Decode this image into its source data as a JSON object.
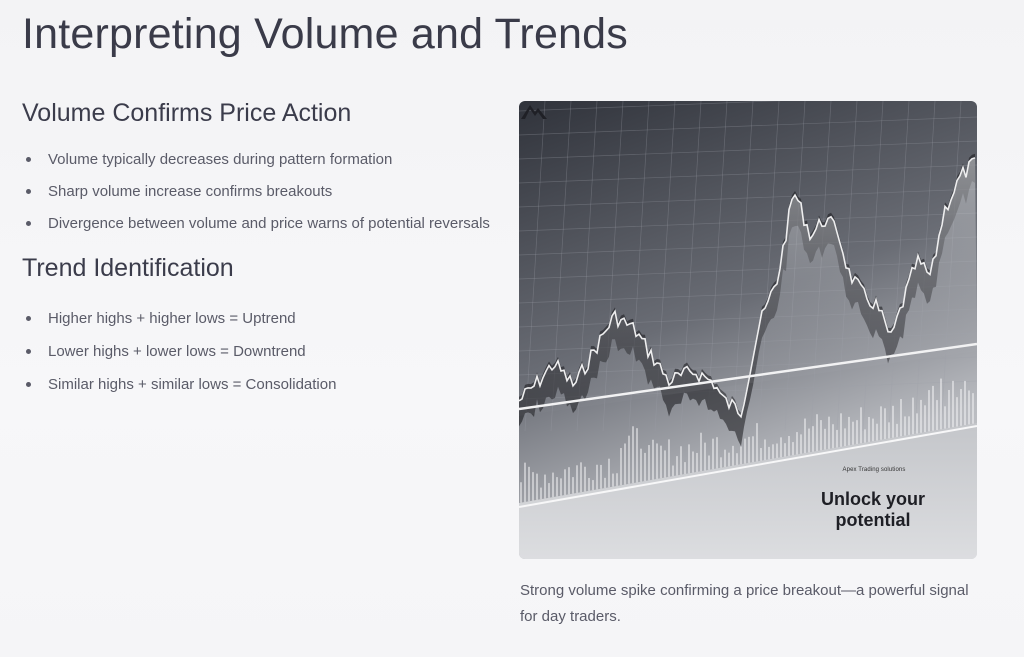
{
  "page": {
    "title": "Interpreting Volume and Trends"
  },
  "sections": [
    {
      "heading": "Volume Confirms Price Action",
      "bullets": [
        "Volume typically decreases during pattern formation",
        "Sharp volume increase confirms breakouts",
        "Divergence between volume and price warns of potential reversals"
      ]
    },
    {
      "heading": "Trend Identification",
      "bullets": [
        "Higher highs + higher lows = Uptrend",
        "Lower highs + lower lows = Downtrend",
        "Similar highs + similar lows = Consolidation"
      ]
    }
  ],
  "figure": {
    "brand_name": "Apex Trading solutions",
    "tagline": "Unlock your potential",
    "logo_icon": "mountain-icon",
    "caption": "Strong volume spike confirming a price breakout—a powerful signal for day traders."
  }
}
